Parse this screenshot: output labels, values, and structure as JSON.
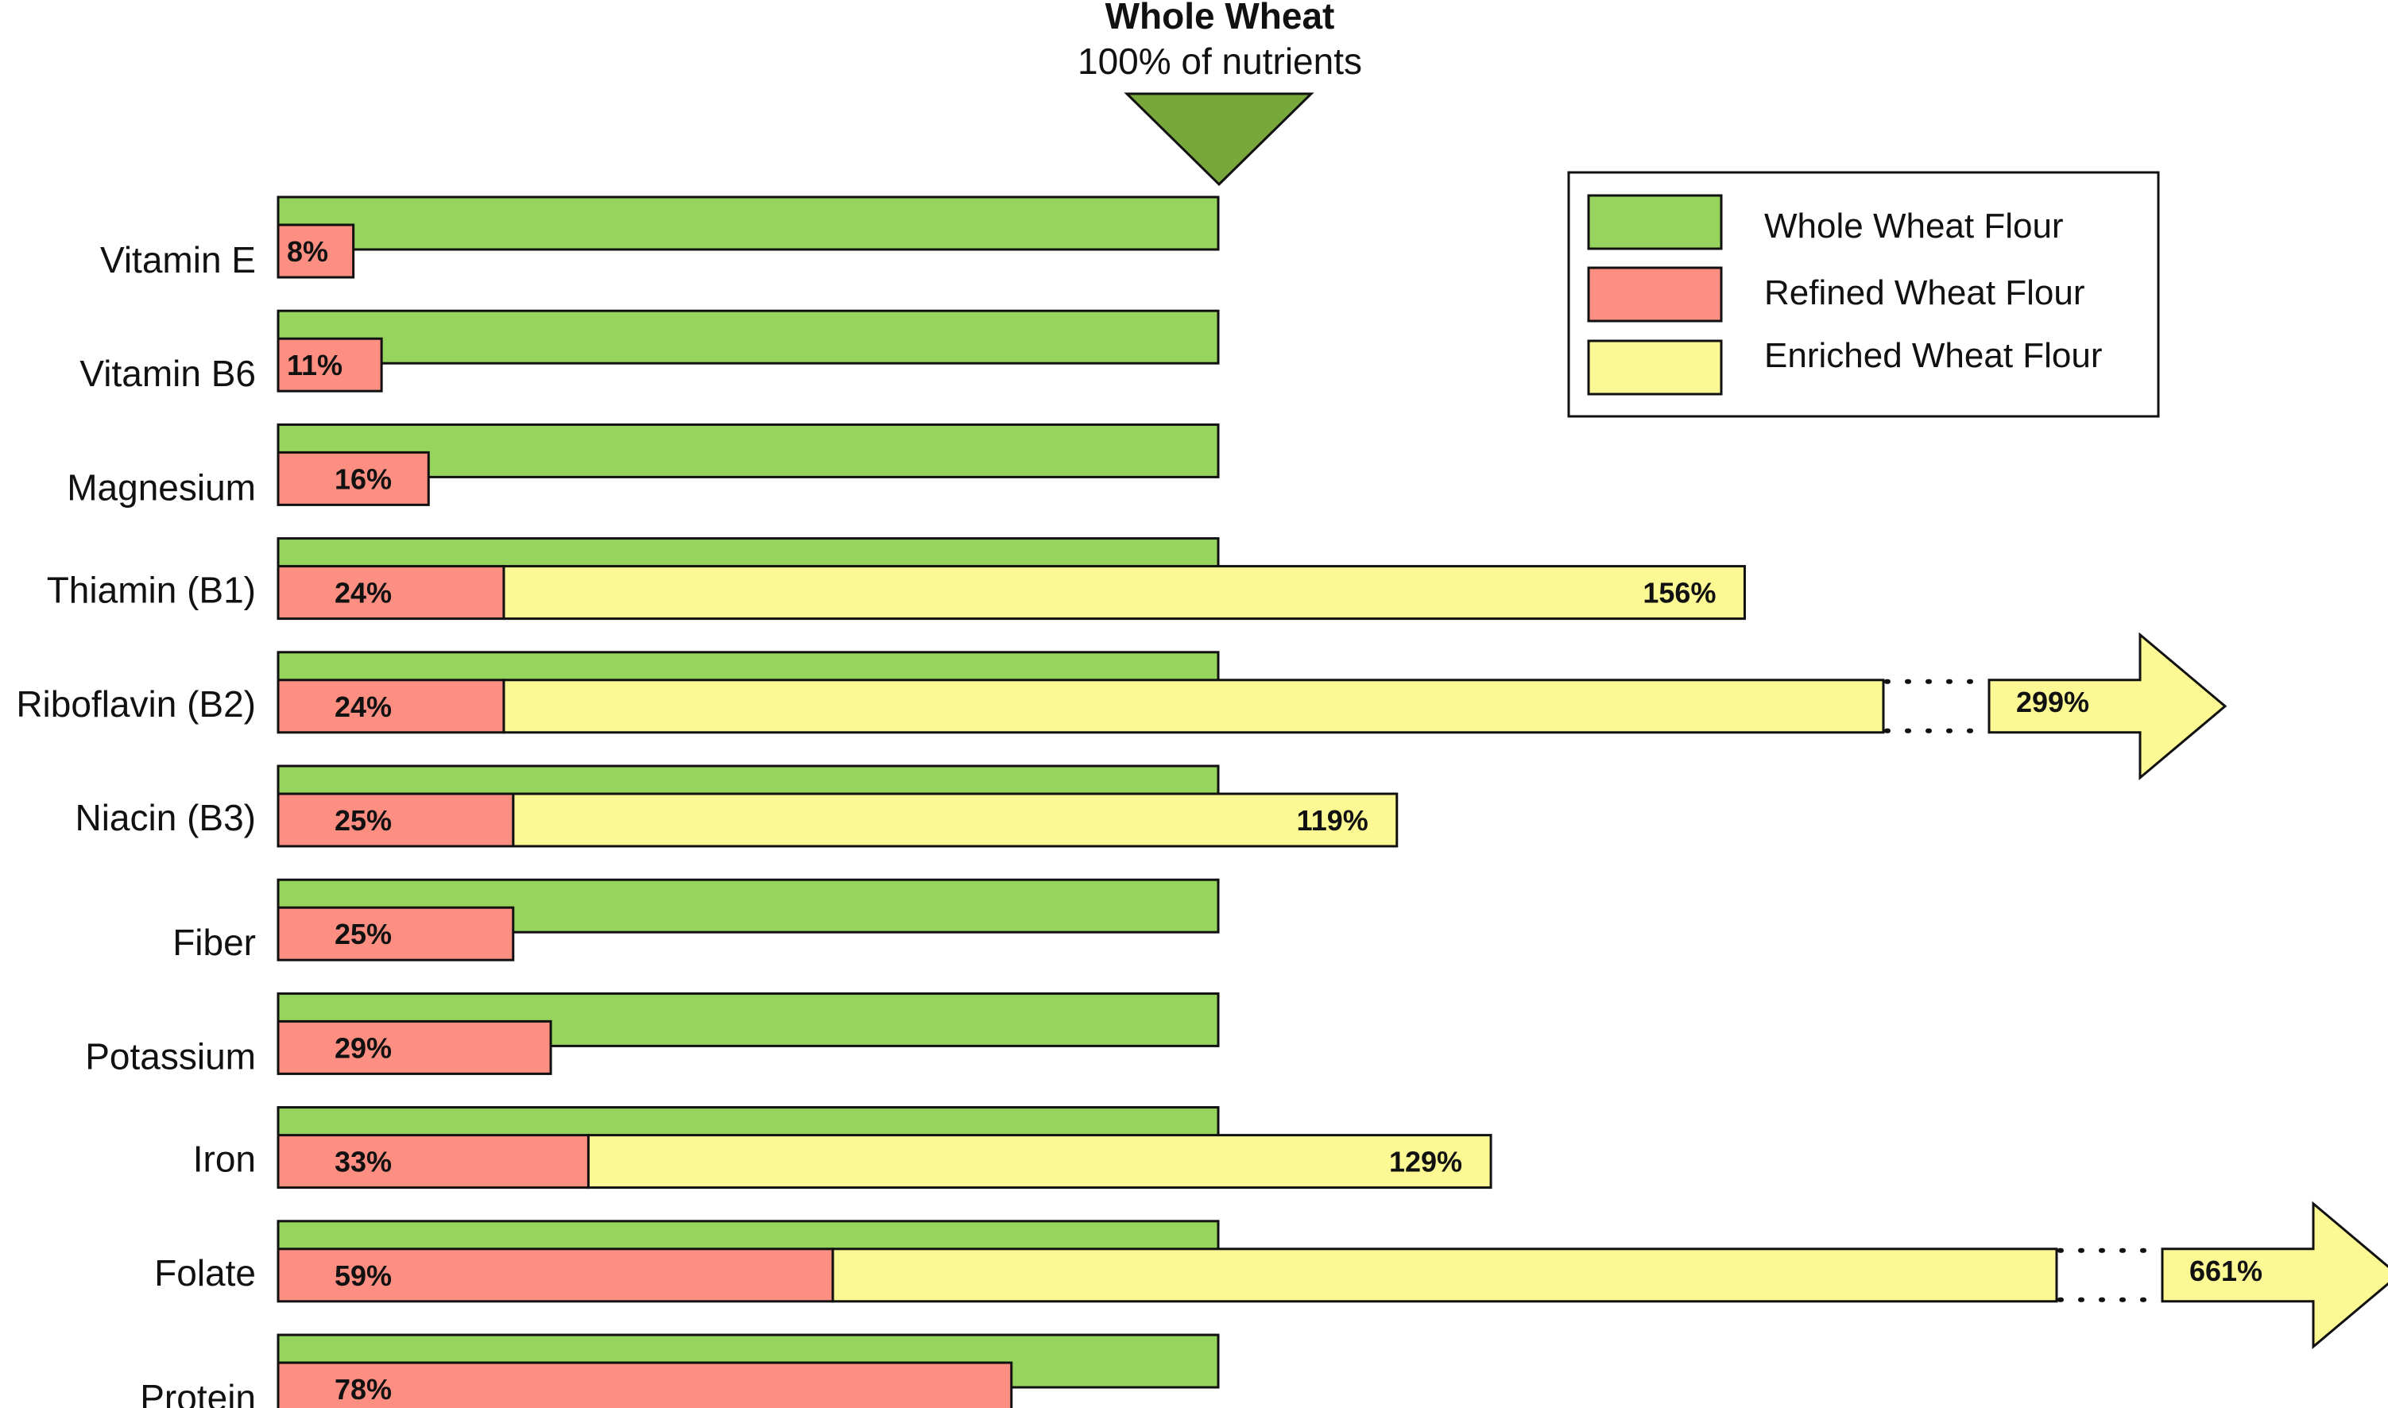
{
  "header": {
    "title": "Whole Wheat",
    "subtitle": "100% of nutrients"
  },
  "colors": {
    "whole": "#97d45e",
    "refined": "#fd8f82",
    "enriched": "#fcf995",
    "marker": "#78a83b",
    "stroke": "#111111"
  },
  "legend": {
    "items": [
      {
        "label": "Whole Wheat Flour",
        "color": "#97d45e"
      },
      {
        "label": "Refined Wheat Flour",
        "color": "#fd8f82"
      },
      {
        "label": "Enriched Wheat Flour",
        "color": "#fcf995"
      }
    ]
  },
  "chart_data": {
    "type": "bar",
    "title": "Whole Wheat",
    "subtitle": "100% of nutrients",
    "categories": [
      "Vitamin E",
      "Vitamin B6",
      "Magnesium",
      "Thiamin (B1)",
      "Riboflavin (B2)",
      "Niacin (B3)",
      "Fiber",
      "Potassium",
      "Iron",
      "Folate",
      "Protein"
    ],
    "series": [
      {
        "name": "Whole Wheat Flour",
        "values": [
          100,
          100,
          100,
          100,
          100,
          100,
          100,
          100,
          100,
          100,
          100
        ]
      },
      {
        "name": "Refined Wheat Flour",
        "values": [
          8,
          11,
          16,
          24,
          24,
          25,
          25,
          29,
          33,
          59,
          78
        ],
        "labels": [
          "8%",
          "11%",
          "16%",
          "24%",
          "24%",
          "25%",
          "25%",
          "29%",
          "33%",
          "59%",
          "78%"
        ]
      },
      {
        "name": "Enriched Wheat Flour",
        "values": [
          null,
          null,
          null,
          156,
          299,
          119,
          null,
          null,
          129,
          661,
          null
        ],
        "labels": [
          "",
          "",
          "",
          "156%",
          "299%",
          "119%",
          "",
          "",
          "129%",
          "661%",
          ""
        ]
      }
    ],
    "truncated_series_values": [
      299,
      661
    ],
    "legend_position": "top-right",
    "grid": false
  }
}
